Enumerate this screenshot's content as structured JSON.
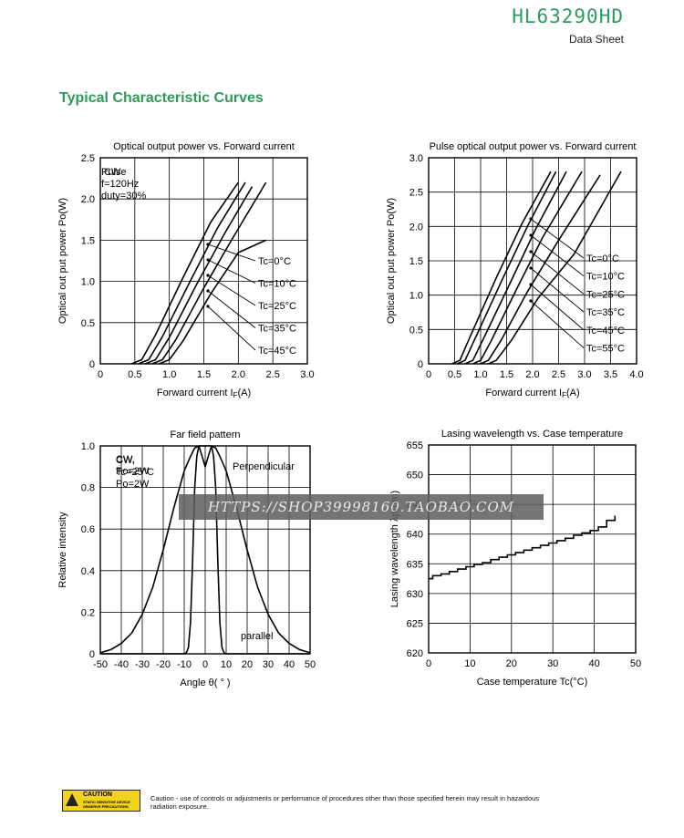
{
  "header": {
    "model": "HL63290HD",
    "subtitle": "Data Sheet"
  },
  "section_title": "Typical Characteristic Curves",
  "watermark": "HTTPS://SHOP39998160.TAOBAO.COM",
  "footer": {
    "badge_title": "CAUTION",
    "badge_line1": "STATIC SENSITIVE DEVICE",
    "badge_line2": "OBSERVE PRECAUTIONS",
    "caution_text": "Caution - use of controls or adjustments or performance of procedures other than those specified herein may result in hazardous radiation exposure."
  },
  "chart_data": [
    {
      "type": "line",
      "title": "Optical output power vs. Forward current",
      "xlabel": "Forward current I",
      "xlabel_sub": "F",
      "xlabel_unit": "(A)",
      "ylabel": "Optical out put power Po(W)",
      "xlim": [
        0,
        3.0
      ],
      "ylim": [
        0,
        2.5
      ],
      "xticks": [
        0,
        0.5,
        1.0,
        1.5,
        2.0,
        2.5,
        3.0
      ],
      "xtick_labels": [
        "0",
        "0.5",
        "1.0",
        "1.5",
        "2.0",
        "2.5",
        "3.0"
      ],
      "yticks": [
        0,
        0.5,
        1.0,
        1.5,
        2.0,
        2.5
      ],
      "ytick_labels": [
        "0",
        "0.5",
        "1.0",
        "1.5",
        "2.0",
        "2.5"
      ],
      "notes": [
        "CW"
      ],
      "series": [
        {
          "name": "Tc=0°C",
          "x": [
            0.45,
            0.6,
            0.8,
            1.2,
            1.6,
            2.0
          ],
          "y": [
            0,
            0.05,
            0.35,
            1.05,
            1.72,
            2.2
          ]
        },
        {
          "name": "Tc=10°C",
          "x": [
            0.55,
            0.7,
            0.9,
            1.3,
            1.7,
            2.1
          ],
          "y": [
            0,
            0.05,
            0.33,
            1.0,
            1.65,
            2.2
          ]
        },
        {
          "name": "Tc=25°C",
          "x": [
            0.65,
            0.8,
            1.0,
            1.4,
            1.8,
            2.2
          ],
          "y": [
            0,
            0.05,
            0.32,
            0.97,
            1.58,
            2.15
          ]
        },
        {
          "name": "Tc=35°C",
          "x": [
            0.75,
            0.9,
            1.1,
            1.5,
            1.9,
            2.4
          ],
          "y": [
            0,
            0.05,
            0.3,
            0.92,
            1.5,
            2.2
          ]
        },
        {
          "name": "Tc=45°C",
          "x": [
            0.85,
            1.0,
            1.2,
            1.6,
            2.0,
            2.4
          ],
          "y": [
            0,
            0.05,
            0.28,
            0.85,
            1.35,
            1.5
          ]
        }
      ]
    },
    {
      "type": "line",
      "title": "Pulse optical output power vs. Forward current",
      "xlabel": "Forward current I",
      "xlabel_sub": "F",
      "xlabel_unit": "(A)",
      "ylabel": "Optical out put power Po(W)",
      "xlim": [
        0,
        4.0
      ],
      "ylim": [
        0,
        3.0
      ],
      "xticks": [
        0,
        0.5,
        1.0,
        1.5,
        2.0,
        2.5,
        3.0,
        3.5,
        4.0
      ],
      "xtick_labels": [
        "0",
        "0.5",
        "1.0",
        "1.5",
        "2.0",
        "2.5",
        "3.0",
        "3.5",
        "4.0"
      ],
      "yticks": [
        0,
        0.5,
        1.0,
        1.5,
        2.0,
        2.5,
        3.0
      ],
      "ytick_labels": [
        "0",
        "0.5",
        "1.0",
        "1.5",
        "2.0",
        "2.5",
        "3.0"
      ],
      "notes": [
        "Pulse",
        "f=120Hz",
        "duty=30%"
      ],
      "series": [
        {
          "name": "Tc=0°C",
          "x": [
            0.45,
            0.6,
            0.8,
            1.3,
            1.8,
            2.35
          ],
          "y": [
            0,
            0.05,
            0.4,
            1.25,
            2.05,
            2.8
          ]
        },
        {
          "name": "Tc=10°C",
          "x": [
            0.55,
            0.7,
            0.9,
            1.4,
            1.9,
            2.45
          ],
          "y": [
            0,
            0.05,
            0.38,
            1.2,
            2.0,
            2.8
          ]
        },
        {
          "name": "Tc=25°C",
          "x": [
            0.7,
            0.85,
            1.05,
            1.55,
            2.05,
            2.65
          ],
          "y": [
            0,
            0.05,
            0.36,
            1.15,
            1.95,
            2.8
          ]
        },
        {
          "name": "Tc=35°C",
          "x": [
            0.85,
            1.0,
            1.2,
            1.7,
            2.2,
            2.95
          ],
          "y": [
            0,
            0.05,
            0.33,
            1.1,
            1.85,
            2.8
          ]
        },
        {
          "name": "Tc=45°C",
          "x": [
            1.0,
            1.15,
            1.4,
            1.9,
            2.5,
            3.3
          ],
          "y": [
            0,
            0.05,
            0.35,
            1.05,
            1.8,
            2.75
          ]
        },
        {
          "name": "Tc=55°C",
          "x": [
            1.15,
            1.3,
            1.6,
            2.1,
            2.8,
            3.7
          ],
          "y": [
            0,
            0.05,
            0.35,
            0.95,
            1.6,
            2.8
          ]
        }
      ]
    },
    {
      "type": "line",
      "title": "Far field pattern",
      "xlabel": "Angle θ( ° )",
      "ylabel": "Relative intensity",
      "xlim": [
        -50,
        50
      ],
      "ylim": [
        0,
        1.0
      ],
      "xticks": [
        -50,
        -40,
        -30,
        -20,
        -10,
        0,
        10,
        20,
        30,
        40,
        50
      ],
      "xtick_labels": [
        "-50",
        "-40",
        "-30",
        "-20",
        "-10",
        "0",
        "10",
        "20",
        "30",
        "40",
        "50"
      ],
      "yticks": [
        0,
        0.2,
        0.4,
        0.6,
        0.8,
        1.0
      ],
      "ytick_labels": [
        "0",
        "0.2",
        "0.4",
        "0.6",
        "0.8",
        "1.0"
      ],
      "notes": [
        "CW,",
        "Tc=25°C",
        "Po=2W"
      ],
      "series": [
        {
          "name": "Perpendicular",
          "x": [
            -50,
            -45,
            -40,
            -35,
            -30,
            -25,
            -20,
            -15,
            -10,
            -7,
            -5,
            -3,
            -1.5,
            0,
            1.5,
            3,
            5,
            7,
            10,
            15,
            20,
            25,
            30,
            35,
            40,
            45,
            50
          ],
          "y": [
            0.005,
            0.02,
            0.05,
            0.1,
            0.19,
            0.32,
            0.5,
            0.7,
            0.88,
            0.95,
            0.99,
            1.0,
            0.95,
            0.9,
            0.95,
            1.0,
            0.99,
            0.95,
            0.88,
            0.7,
            0.5,
            0.32,
            0.19,
            0.1,
            0.05,
            0.02,
            0.005
          ]
        },
        {
          "name": "parallel",
          "x": [
            -50,
            -10,
            -9,
            -8,
            -7,
            -6,
            -5,
            -4,
            -3,
            0,
            3,
            4,
            5,
            6,
            7,
            8,
            9,
            10,
            50
          ],
          "y": [
            0,
            0,
            0.005,
            0.03,
            0.15,
            0.45,
            0.8,
            0.95,
            1.0,
            1.0,
            1.0,
            0.95,
            0.8,
            0.45,
            0.15,
            0.03,
            0.005,
            0,
            0
          ]
        }
      ]
    },
    {
      "type": "line",
      "title": "Lasing wavelength vs. Case temperature",
      "xlabel": "Case temperature Tc(°C)",
      "ylabel": "Lasing wavelength λp(nm)",
      "xlim": [
        0,
        50
      ],
      "ylim": [
        620,
        655
      ],
      "xticks": [
        0,
        10,
        20,
        30,
        40,
        50
      ],
      "xtick_labels": [
        "0",
        "10",
        "20",
        "30",
        "40",
        "50"
      ],
      "yticks": [
        620,
        625,
        630,
        635,
        640,
        645,
        650,
        655
      ],
      "ytick_labels": [
        "620",
        "625",
        "630",
        "635",
        "640",
        "645",
        "650",
        "655"
      ],
      "notes": [
        "CW,",
        "Po=2W"
      ],
      "series": [
        {
          "name": "",
          "x": [
            0,
            1,
            3,
            5,
            7,
            9,
            11,
            13,
            15,
            17,
            19,
            21,
            23,
            25,
            27,
            29,
            31,
            33,
            35,
            37,
            39,
            41,
            43,
            45
          ],
          "y": [
            632.5,
            633,
            633.3,
            633.7,
            634.1,
            634.5,
            634.9,
            635.2,
            635.7,
            636.1,
            636.5,
            636.9,
            637.3,
            637.7,
            638.1,
            638.5,
            638.9,
            639.3,
            639.8,
            640.2,
            640.6,
            641.2,
            642.3,
            643.1
          ]
        }
      ]
    }
  ]
}
